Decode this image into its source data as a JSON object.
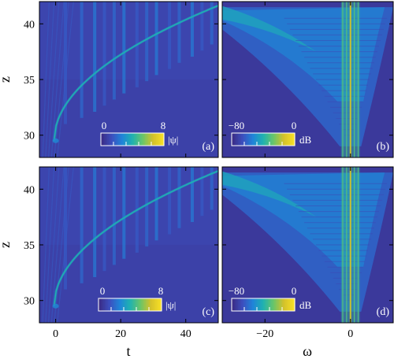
{
  "chart_data": {
    "type": "heatmap",
    "colormap": [
      "#3b2c86",
      "#3c4fbf",
      "#1f84d8",
      "#1fb2b0",
      "#68c56a",
      "#d3c12a",
      "#f7de26"
    ],
    "panels": [
      {
        "tag": "(a)",
        "kind": "intensity",
        "xlim": [
          -5,
          50
        ],
        "ylim": [
          28,
          42
        ],
        "xticks": [
          0,
          20,
          40
        ],
        "yticks": [
          30,
          35,
          40
        ],
        "show_xticklabels": false,
        "show_yticklabels": true,
        "colorbar": {
          "min_label": "0",
          "max_label": "8",
          "unit": "|ψ|"
        }
      },
      {
        "tag": "(b)",
        "kind": "spectrum",
        "xlim": [
          -30,
          10
        ],
        "ylim": [
          28,
          42
        ],
        "xticks": [
          -20,
          0
        ],
        "yticks": [
          30,
          35,
          40
        ],
        "show_xticklabels": false,
        "show_yticklabels": false,
        "colorbar": {
          "min_label": "−80",
          "max_label": "0",
          "unit": "dB"
        }
      },
      {
        "tag": "(c)",
        "kind": "intensity",
        "xlim": [
          -5,
          50
        ],
        "ylim": [
          28,
          42
        ],
        "xticks": [
          0,
          20,
          40
        ],
        "yticks": [
          30,
          35,
          40
        ],
        "show_xticklabels": true,
        "show_yticklabels": true,
        "colorbar": {
          "min_label": "0",
          "max_label": "8",
          "unit": "|ψ|"
        }
      },
      {
        "tag": "(d)",
        "kind": "spectrum",
        "xlim": [
          -30,
          10
        ],
        "ylim": [
          28,
          42
        ],
        "xticks": [
          -20,
          0
        ],
        "yticks": [
          30,
          35,
          40
        ],
        "show_xticklabels": true,
        "show_yticklabels": false,
        "colorbar": {
          "min_label": "−80",
          "max_label": "0",
          "unit": "dB"
        }
      }
    ],
    "axis_labels": {
      "y_left": "z",
      "x_left": "t",
      "x_right": "ω"
    },
    "tick_labels": {
      "y": [
        "30",
        "35",
        "40"
      ],
      "x_left": [
        "0",
        "20",
        "40"
      ],
      "x_right": [
        "−20",
        "0"
      ]
    }
  }
}
